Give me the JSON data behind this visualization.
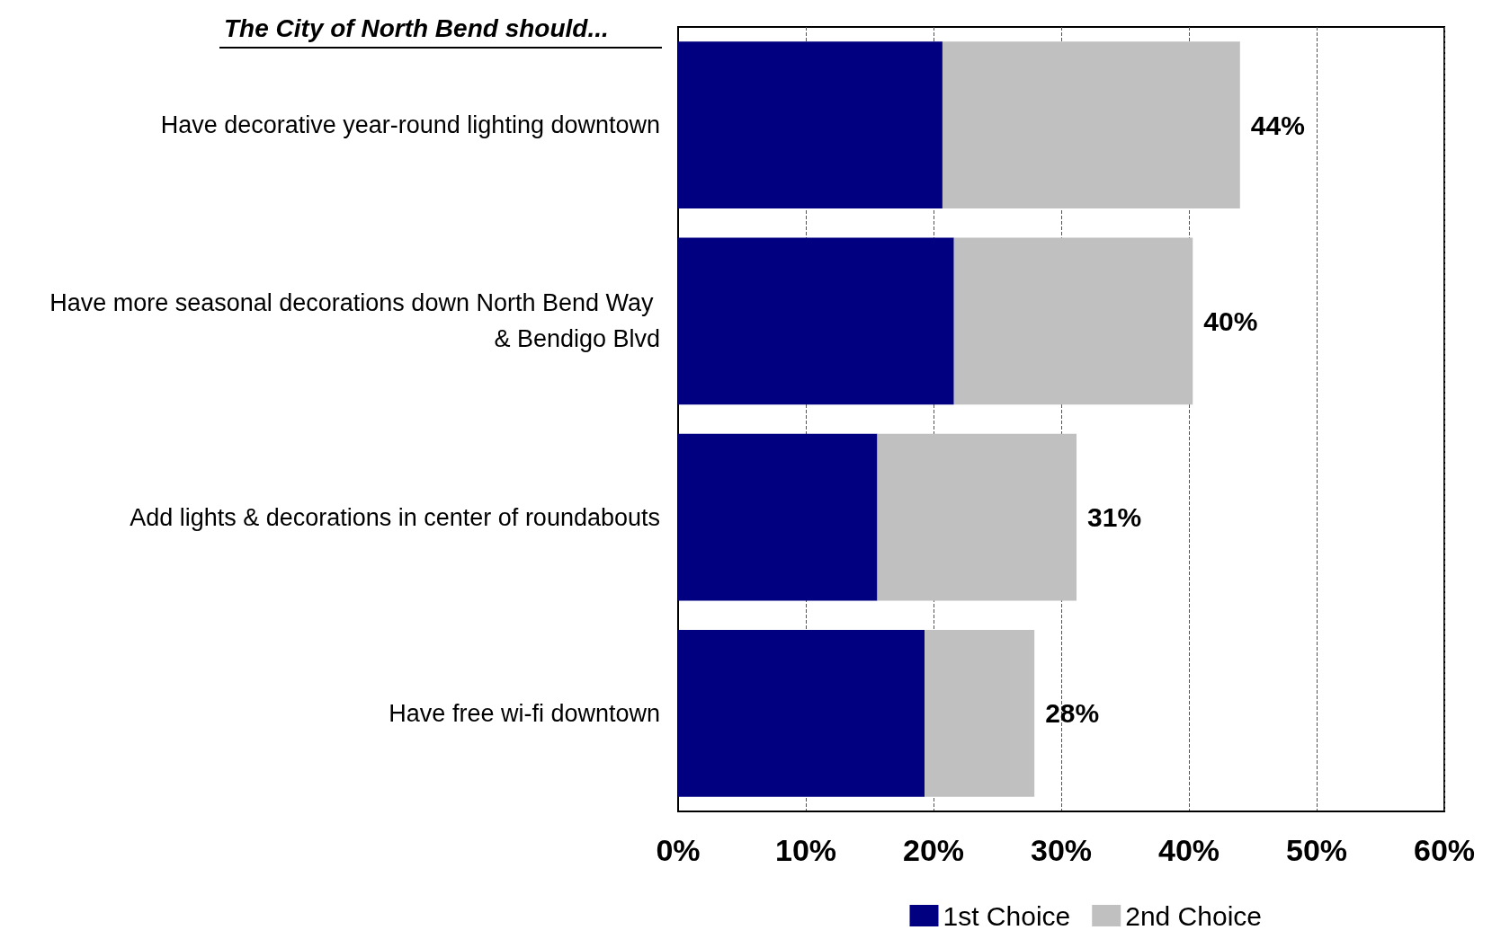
{
  "chart_data": {
    "type": "bar",
    "orientation": "horizontal",
    "stacked": true,
    "title": "The City of North Bend should...",
    "categories": [
      "Have decorative year-round lighting downtown",
      "Have more seasonal decorations down North Bend Way & Bendigo Blvd",
      "Add lights & decorations in center of roundabouts",
      "Have free wi-fi downtown"
    ],
    "series": [
      {
        "name": "1st Choice",
        "color": "#000080",
        "values": [
          20.7,
          21.6,
          15.6,
          19.3
        ]
      },
      {
        "name": "2nd Choice",
        "color": "#c0c0c0",
        "values": [
          23.3,
          18.7,
          15.6,
          8.6
        ]
      }
    ],
    "totals": [
      "44%",
      "40%",
      "31%",
      "28%"
    ],
    "xlim": [
      0,
      60
    ],
    "xticks": [
      {
        "value": 0,
        "label": "0%"
      },
      {
        "value": 10,
        "label": "10%"
      },
      {
        "value": 20,
        "label": "20%"
      },
      {
        "value": 30,
        "label": "30%"
      },
      {
        "value": 40,
        "label": "40%"
      },
      {
        "value": 50,
        "label": "50%"
      },
      {
        "value": 60,
        "label": "60%"
      }
    ],
    "grid": "x",
    "legend": "bottom right"
  }
}
